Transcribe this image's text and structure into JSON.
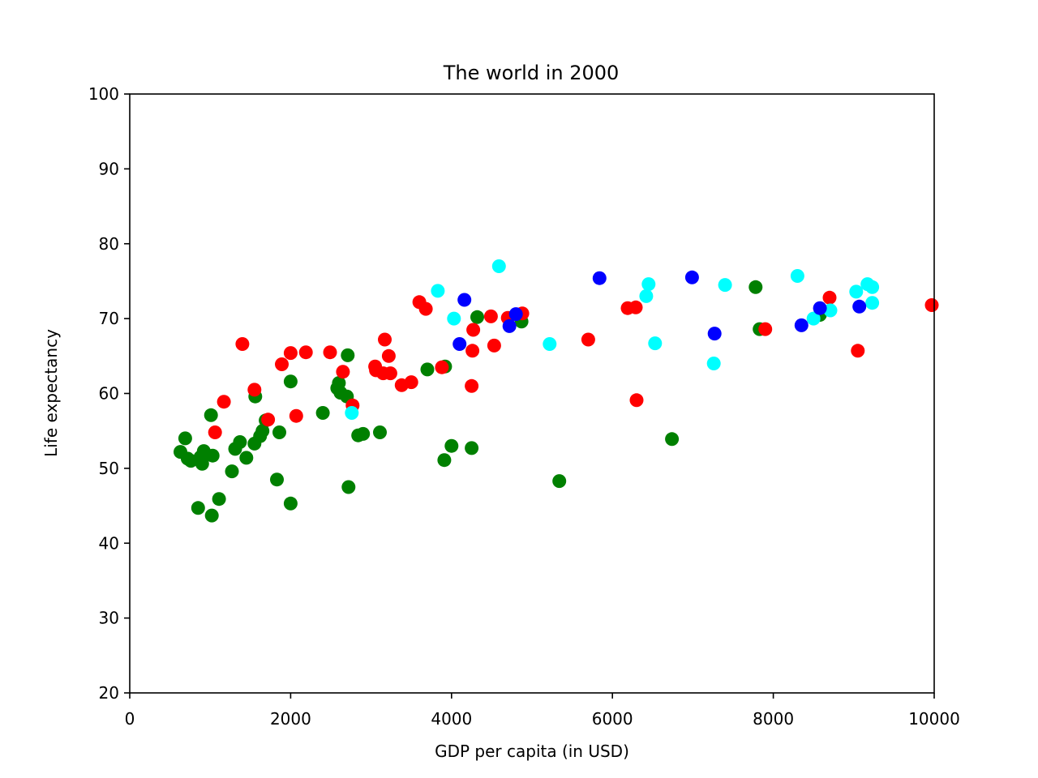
{
  "chart_data": {
    "type": "scatter",
    "title": "The world in 2000",
    "xlabel": "GDP per capita (in USD)",
    "ylabel": "Life expectancy",
    "xlim": [
      0,
      10000
    ],
    "ylim": [
      20,
      100
    ],
    "xticks": [
      0,
      2000,
      4000,
      6000,
      8000,
      10000
    ],
    "yticks": [
      20,
      30,
      40,
      50,
      60,
      70,
      80,
      90,
      100
    ],
    "xtick_labels": [
      "0",
      "2000",
      "4000",
      "6000",
      "8000",
      "10000"
    ],
    "ytick_labels": [
      "20",
      "30",
      "40",
      "50",
      "60",
      "70",
      "80",
      "90",
      "100"
    ],
    "grid": false,
    "colors": {
      "green": "#008000",
      "red": "#ff0000",
      "cyan": "#00ffff",
      "blue": "#0000ff"
    },
    "series": [
      {
        "color": "green",
        "points": [
          [
            630,
            52.2
          ],
          [
            690,
            54.0
          ],
          [
            720,
            51.3
          ],
          [
            760,
            51.0
          ],
          [
            850,
            44.7
          ],
          [
            880,
            51.5
          ],
          [
            900,
            50.6
          ],
          [
            920,
            52.3
          ],
          [
            1010,
            57.1
          ],
          [
            1020,
            43.7
          ],
          [
            1030,
            51.7
          ],
          [
            1110,
            45.9
          ],
          [
            1270,
            49.6
          ],
          [
            1310,
            52.6
          ],
          [
            1370,
            53.5
          ],
          [
            1450,
            51.4
          ],
          [
            1550,
            53.3
          ],
          [
            1560,
            59.6
          ],
          [
            1620,
            54.3
          ],
          [
            1650,
            55.0
          ],
          [
            1690,
            56.4
          ],
          [
            1830,
            48.5
          ],
          [
            1860,
            54.8
          ],
          [
            2000,
            61.6
          ],
          [
            2000,
            45.3
          ],
          [
            2400,
            57.4
          ],
          [
            2580,
            60.7
          ],
          [
            2600,
            61.4
          ],
          [
            2620,
            60.1
          ],
          [
            2700,
            59.6
          ],
          [
            2710,
            65.1
          ],
          [
            2720,
            47.5
          ],
          [
            2840,
            54.4
          ],
          [
            2900,
            54.6
          ],
          [
            3110,
            54.8
          ],
          [
            3700,
            63.2
          ],
          [
            3910,
            51.1
          ],
          [
            3920,
            63.6
          ],
          [
            4000,
            53.0
          ],
          [
            4250,
            52.7
          ],
          [
            4320,
            70.2
          ],
          [
            4870,
            69.6
          ],
          [
            5340,
            48.3
          ],
          [
            6740,
            53.9
          ],
          [
            7780,
            74.2
          ],
          [
            7830,
            68.6
          ],
          [
            8580,
            70.5
          ]
        ]
      },
      {
        "color": "red",
        "points": [
          [
            1060,
            54.8
          ],
          [
            1170,
            58.9
          ],
          [
            1400,
            66.6
          ],
          [
            1550,
            60.5
          ],
          [
            1720,
            56.5
          ],
          [
            1890,
            63.9
          ],
          [
            2000,
            65.4
          ],
          [
            2070,
            57.0
          ],
          [
            2190,
            65.5
          ],
          [
            2490,
            65.5
          ],
          [
            2650,
            62.9
          ],
          [
            2770,
            58.4
          ],
          [
            3050,
            63.6
          ],
          [
            3060,
            63.1
          ],
          [
            3150,
            62.7
          ],
          [
            3170,
            67.2
          ],
          [
            3220,
            65.0
          ],
          [
            3240,
            62.7
          ],
          [
            3380,
            61.1
          ],
          [
            3500,
            61.5
          ],
          [
            3600,
            72.2
          ],
          [
            3680,
            71.3
          ],
          [
            3880,
            63.5
          ],
          [
            4250,
            61.0
          ],
          [
            4260,
            65.7
          ],
          [
            4270,
            68.5
          ],
          [
            4490,
            70.3
          ],
          [
            4530,
            66.4
          ],
          [
            4700,
            70.1
          ],
          [
            4880,
            70.7
          ],
          [
            5700,
            67.2
          ],
          [
            6190,
            71.4
          ],
          [
            6290,
            71.5
          ],
          [
            6300,
            59.1
          ],
          [
            7900,
            68.6
          ],
          [
            8700,
            72.8
          ],
          [
            9050,
            65.7
          ],
          [
            9970,
            71.8
          ]
        ]
      },
      {
        "color": "cyan",
        "points": [
          [
            2760,
            57.4
          ],
          [
            3830,
            73.7
          ],
          [
            4030,
            70.0
          ],
          [
            4590,
            77.0
          ],
          [
            5220,
            66.6
          ],
          [
            6420,
            73.0
          ],
          [
            6450,
            74.6
          ],
          [
            6530,
            66.7
          ],
          [
            7260,
            64.0
          ],
          [
            7400,
            74.5
          ],
          [
            8300,
            75.7
          ],
          [
            8500,
            70.0
          ],
          [
            8710,
            71.1
          ],
          [
            9030,
            73.6
          ],
          [
            9170,
            74.6
          ],
          [
            9230,
            74.2
          ],
          [
            9230,
            72.1
          ]
        ]
      },
      {
        "color": "blue",
        "points": [
          [
            4100,
            66.6
          ],
          [
            4160,
            72.5
          ],
          [
            4720,
            69.0
          ],
          [
            4800,
            70.6
          ],
          [
            5840,
            75.4
          ],
          [
            6990,
            75.5
          ],
          [
            7270,
            68.0
          ],
          [
            8350,
            69.1
          ],
          [
            8580,
            71.4
          ],
          [
            9070,
            71.6
          ]
        ]
      }
    ]
  }
}
